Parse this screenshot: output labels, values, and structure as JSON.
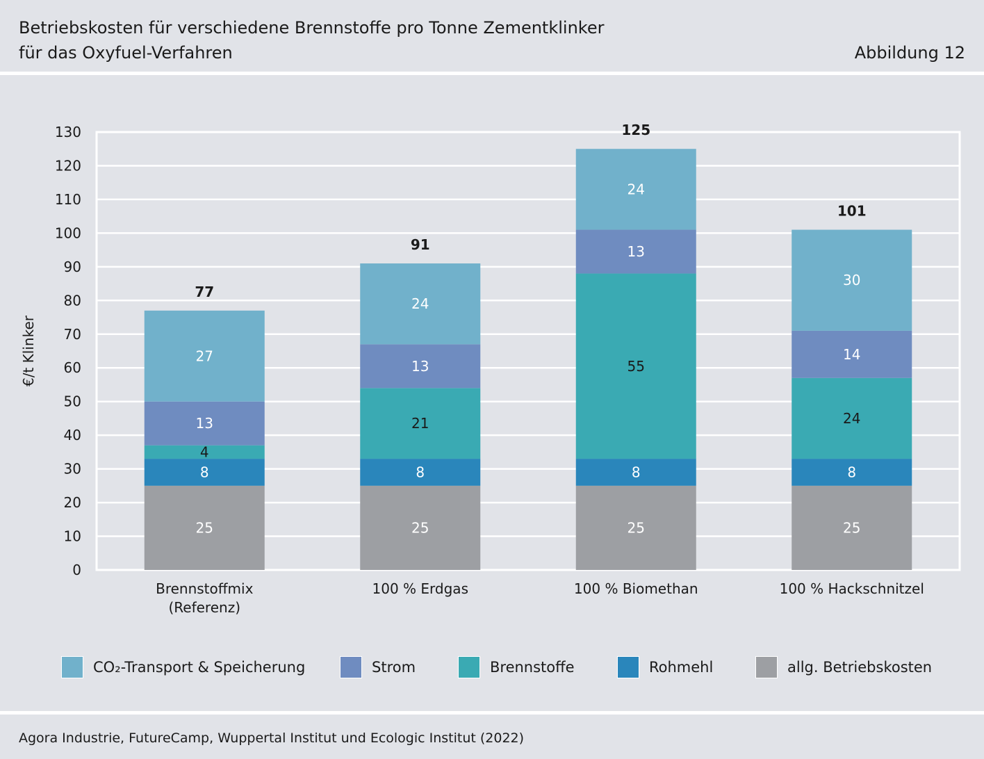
{
  "header": {
    "title_line1": "Betriebskosten für verschiedene Brennstoffe pro Tonne Zementklinker",
    "title_line2": "für das Oxyfuel-Verfahren",
    "figure_label": "Abbildung 12"
  },
  "footer": {
    "source": "Agora Industrie, FutureCamp, Wuppertal Institut und Ecologic Institut (2022)"
  },
  "chart_data": {
    "type": "bar",
    "stacked": true,
    "title": "Betriebskosten für verschiedene Brennstoffe pro Tonne Zementklinker für das Oxyfuel-Verfahren",
    "ylabel": "€/t Klinker",
    "xlabel": "",
    "ylim": [
      0,
      130
    ],
    "yticks": [
      0,
      10,
      20,
      30,
      40,
      50,
      60,
      70,
      80,
      90,
      100,
      110,
      120,
      130
    ],
    "grid": true,
    "legend_position": "bottom",
    "categories": [
      [
        "Brennstoffmix",
        "(Referenz)"
      ],
      [
        "100 % Erdgas"
      ],
      [
        "100 % Biomethan"
      ],
      [
        "100 % Hackschnitzel"
      ]
    ],
    "series": [
      {
        "name": "allg. Betriebskosten",
        "color": "#9d9fa3",
        "label_color": "#ffffff",
        "values": [
          25,
          25,
          25,
          25
        ]
      },
      {
        "name": "Rohmehl",
        "color": "#2a86bb",
        "label_color": "#ffffff",
        "values": [
          8,
          8,
          8,
          8
        ]
      },
      {
        "name": "Brennstoffe",
        "color": "#3aaab3",
        "label_color": "#1a1a1a",
        "values": [
          4,
          21,
          55,
          24
        ]
      },
      {
        "name": "Strom",
        "color": "#6f8cc0",
        "label_color": "#ffffff",
        "values": [
          13,
          13,
          13,
          14
        ]
      },
      {
        "name": "CO₂-Transport & Speicherung",
        "color": "#71b1cb",
        "label_color": "#ffffff",
        "values": [
          27,
          24,
          24,
          30
        ]
      }
    ],
    "totals": [
      77,
      91,
      125,
      101
    ]
  },
  "legend_order": [
    4,
    3,
    2,
    1,
    0
  ]
}
